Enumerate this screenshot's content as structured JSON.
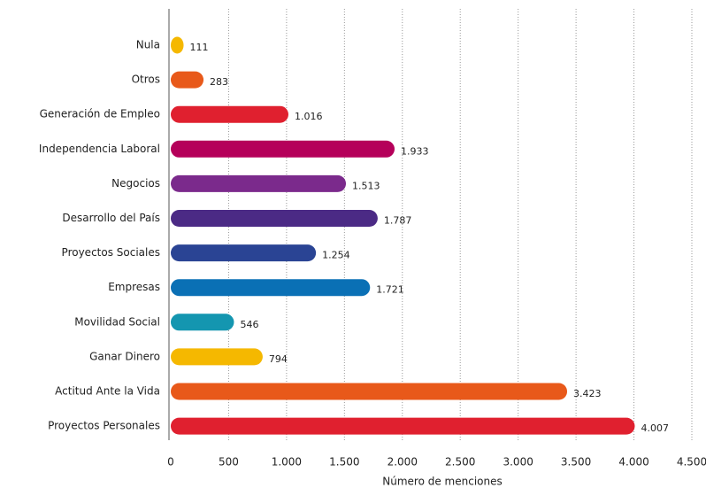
{
  "chart_data": {
    "type": "barh",
    "x_label": "Número de menciones",
    "categories": [
      "Nula",
      "Otros",
      "Generación de Empleo",
      "Independencia Laboral",
      "Negocios",
      "Desarrollo del País",
      "Proyectos Sociales",
      "Empresas",
      "Movilidad Social",
      "Ganar Dinero",
      "Actitud Ante la Vida",
      "Proyectos Personales"
    ],
    "values": [
      111,
      283,
      1016,
      1933,
      1513,
      1787,
      1254,
      1721,
      546,
      794,
      3423,
      4007
    ],
    "value_labels": [
      "111",
      "283",
      "1.016",
      "1.933",
      "1.513",
      "1.787",
      "1.254",
      "1.721",
      "546",
      "794",
      "3.423",
      "4.007"
    ],
    "colors": [
      "#f5b800",
      "#e8591a",
      "#e0202f",
      "#b5005a",
      "#7b2a8c",
      "#4b2a85",
      "#2a4494",
      "#0a70b5",
      "#1496b0",
      "#f5b800",
      "#e8591a",
      "#e0202f"
    ],
    "xlim": [
      0,
      4500
    ],
    "xticks": [
      0,
      500,
      {
        "value": 1000,
        "label": "1.000"
      },
      {
        "value": 1500,
        "label": "1.500"
      },
      {
        "value": 2000,
        "label": "2.000"
      },
      {
        "value": 2500,
        "label": "2.500"
      },
      {
        "value": 3000,
        "label": "3.000"
      },
      {
        "value": 3500,
        "label": "3.500"
      },
      {
        "value": 4000,
        "label": "4.000"
      },
      {
        "value": 4500,
        "label": "4.500"
      }
    ],
    "grid": true
  }
}
